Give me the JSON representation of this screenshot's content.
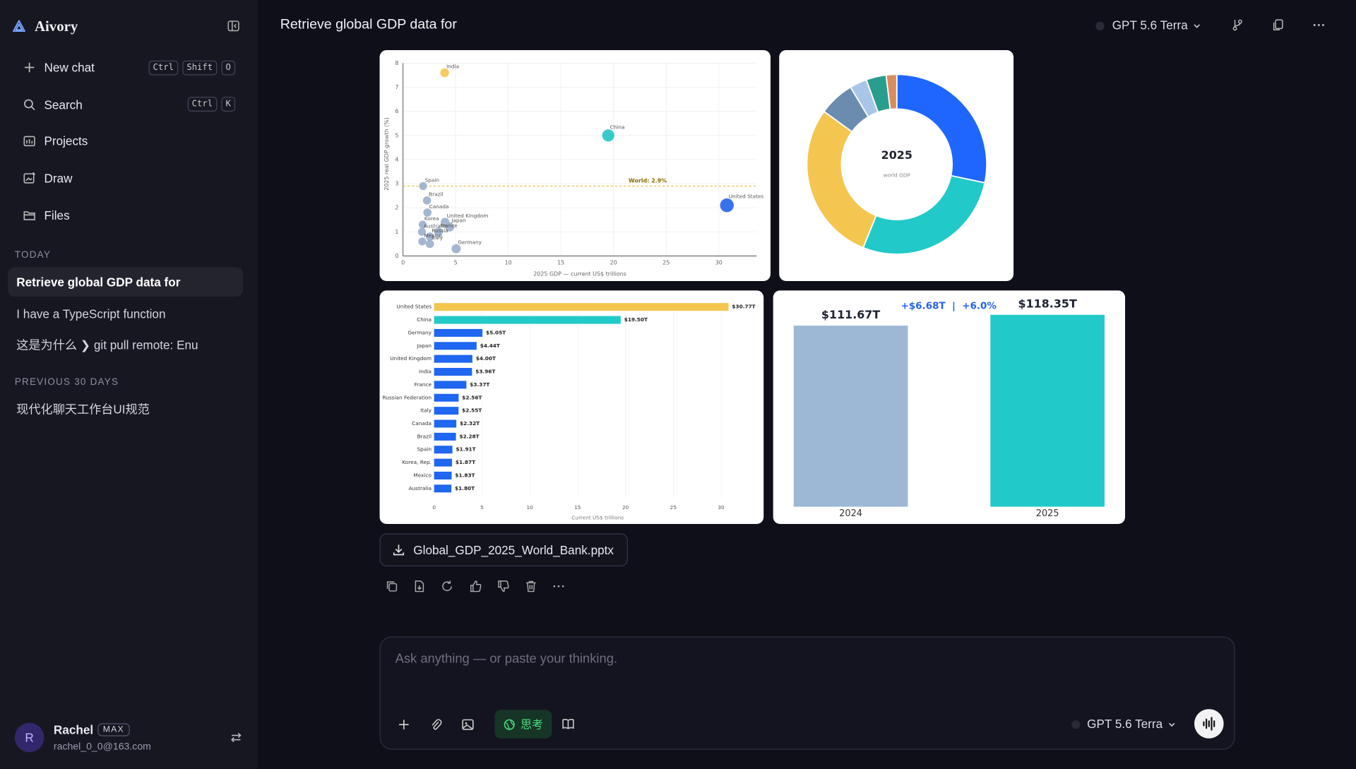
{
  "sidebar": {
    "brand": "Aivory",
    "nav": [
      {
        "label": "New chat",
        "keys": [
          "Ctrl",
          "Shift",
          "O"
        ]
      },
      {
        "label": "Search",
        "keys": [
          "Ctrl",
          "K"
        ]
      },
      {
        "label": "Projects"
      },
      {
        "label": "Draw"
      },
      {
        "label": "Files"
      }
    ],
    "sections": [
      {
        "title": "TODAY",
        "items": [
          "Retrieve global GDP data for",
          "I have a TypeScript function",
          "这是为什么 ❯ git pull remote: Enu"
        ]
      },
      {
        "title": "PREVIOUS 30 DAYS",
        "items": [
          "现代化聊天工作台UI规范"
        ]
      }
    ],
    "user": {
      "avatar": "R",
      "name": "Rachel",
      "badge": "MAX",
      "email": "rachel_0_0@163.com"
    }
  },
  "header": {
    "title": "Retrieve global GDP data for",
    "model": "GPT 5.6 Terra"
  },
  "attachment": "Global_GDP_2025_World_Bank.pptx",
  "composer": {
    "placeholder": "Ask anything — or paste your thinking.",
    "mode": "思考",
    "model": "GPT 5.6 Terra"
  },
  "chart_data": [
    {
      "type": "scatter",
      "xlabel": "2025 GDP — current US$ trillions",
      "ylabel": "2025 real GDP growth (%)",
      "labels": [
        "India",
        "China",
        "United States",
        "Spain",
        "Brazil",
        "Canada",
        "United Kingdom",
        "Japan",
        "France",
        "Korea",
        "Australia",
        "Russia",
        "Mexico",
        "Italy",
        "Germany"
      ],
      "x": [
        3.96,
        19.5,
        30.77,
        1.91,
        2.28,
        2.32,
        4.0,
        4.44,
        3.37,
        1.87,
        1.8,
        2.56,
        1.83,
        2.55,
        5.05
      ],
      "y": [
        7.6,
        5.0,
        2.1,
        2.9,
        2.3,
        1.8,
        1.4,
        1.2,
        1.0,
        1.3,
        1.0,
        0.8,
        0.6,
        0.5,
        0.3
      ],
      "colors": [
        "#f4c64f",
        "#22c5c8",
        "#2563eb",
        "#9aaecb",
        "#9aaecb",
        "#9aaecb",
        "#9aaecb",
        "#9aaecb",
        "#9aaecb",
        "#9aaecb",
        "#9aaecb",
        "#9aaecb",
        "#9aaecb",
        "#9aaecb",
        "#9aaecb"
      ],
      "reference": {
        "value": 2.9,
        "label": "World: 2.9%"
      },
      "xlim": [
        0,
        33.6
      ],
      "xticks": [
        0,
        5,
        10,
        15,
        20,
        25,
        30
      ],
      "ylim": [
        0,
        8
      ],
      "yticks": [
        0,
        1,
        2,
        3,
        4,
        5,
        6,
        7,
        8
      ],
      "grid": true
    },
    {
      "type": "pie",
      "center_title": "2025",
      "center_subtitle": "world GDP",
      "values": [
        28.3,
        27.8,
        28.9,
        6.4,
        3.1,
        3.6,
        1.9
      ],
      "colors": [
        "#1f66ff",
        "#22c9c9",
        "#f4c64f",
        "#6b8cae",
        "#a9c6e8",
        "#2a9d8f",
        "#d98c5f"
      ]
    },
    {
      "type": "bar",
      "orientation": "horizontal",
      "xlabel": "Current US$ trillions",
      "categories": [
        "United States",
        "China",
        "Germany",
        "Japan",
        "United Kingdom",
        "India",
        "France",
        "Russian Federation",
        "Italy",
        "Canada",
        "Brazil",
        "Spain",
        "Korea, Rep.",
        "Mexico",
        "Australia"
      ],
      "values": [
        30.77,
        19.5,
        5.05,
        4.44,
        4.0,
        3.96,
        3.37,
        2.56,
        2.55,
        2.32,
        2.28,
        1.91,
        1.87,
        1.83,
        1.8
      ],
      "value_labels": [
        "$30.77T",
        "$19.50T",
        "$5.05T",
        "$4.44T",
        "$4.00T",
        "$3.96T",
        "$3.37T",
        "$2.56T",
        "$2.55T",
        "$2.32T",
        "$2.28T",
        "$1.91T",
        "$1.87T",
        "$1.83T",
        "$1.80T"
      ],
      "colors": [
        "#f4c64f",
        "#22c9c9",
        "#1f66f0",
        "#1f66f0",
        "#1f66f0",
        "#1f66f0",
        "#1f66f0",
        "#1f66f0",
        "#1f66f0",
        "#1f66f0",
        "#1f66f0",
        "#1f66f0",
        "#1f66f0",
        "#1f66f0",
        "#1f66f0"
      ],
      "xlim": [
        0,
        32
      ],
      "xticks": [
        0,
        5,
        10,
        15,
        20,
        25,
        30
      ],
      "grid": true
    },
    {
      "type": "bar",
      "orientation": "vertical",
      "annotation": "+$6.68T  |  +6.0%",
      "categories": [
        "2024",
        "2025"
      ],
      "values": [
        111.67,
        118.35
      ],
      "value_labels": [
        "$111.67T",
        "$118.35T"
      ],
      "colors": [
        "#9db8d4",
        "#22c9c9"
      ],
      "ylim": [
        0,
        120
      ]
    }
  ]
}
